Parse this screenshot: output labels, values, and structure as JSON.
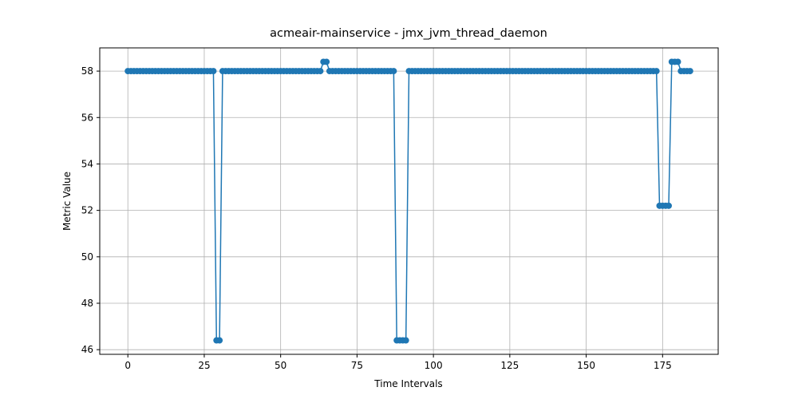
{
  "chart_data": {
    "type": "line",
    "title": "acmeair-mainservice - jmx_jvm_thread_daemon",
    "x_label": "Time Intervals",
    "y_label": "Metric Value",
    "x": [
      0,
      1,
      2,
      3,
      4,
      5,
      6,
      7,
      8,
      9,
      10,
      11,
      12,
      13,
      14,
      15,
      16,
      17,
      18,
      19,
      20,
      21,
      22,
      23,
      24,
      25,
      26,
      27,
      28,
      29,
      30,
      31,
      32,
      33,
      34,
      35,
      36,
      37,
      38,
      39,
      40,
      41,
      42,
      43,
      44,
      45,
      46,
      47,
      48,
      49,
      50,
      51,
      52,
      53,
      54,
      55,
      56,
      57,
      58,
      59,
      60,
      61,
      62,
      63,
      64,
      65,
      66,
      67,
      68,
      69,
      70,
      71,
      72,
      73,
      74,
      75,
      76,
      77,
      78,
      79,
      80,
      81,
      82,
      83,
      84,
      85,
      86,
      87,
      88,
      89,
      90,
      91,
      92,
      93,
      94,
      95,
      96,
      97,
      98,
      99,
      100,
      101,
      102,
      103,
      104,
      105,
      106,
      107,
      108,
      109,
      110,
      111,
      112,
      113,
      114,
      115,
      116,
      117,
      118,
      119,
      120,
      121,
      122,
      123,
      124,
      125,
      126,
      127,
      128,
      129,
      130,
      131,
      132,
      133,
      134,
      135,
      136,
      137,
      138,
      139,
      140,
      141,
      142,
      143,
      144,
      145,
      146,
      147,
      148,
      149,
      150,
      151,
      152,
      153,
      154,
      155,
      156,
      157,
      158,
      159,
      160,
      161,
      162,
      163,
      164,
      165,
      166,
      167,
      168,
      169,
      170,
      171,
      172,
      173,
      174,
      175,
      176,
      177,
      178,
      179,
      180,
      181,
      182,
      183,
      184
    ],
    "series": [
      {
        "color": "#1f77b4",
        "values": [
          58,
          58,
          58,
          58,
          58,
          58,
          58,
          58,
          58,
          58,
          58,
          58,
          58,
          58,
          58,
          58,
          58,
          58,
          58,
          58,
          58,
          58,
          58,
          58,
          58,
          58,
          58,
          58,
          58,
          46.4,
          46.4,
          58,
          58,
          58,
          58,
          58,
          58,
          58,
          58,
          58,
          58,
          58,
          58,
          58,
          58,
          58,
          58,
          58,
          58,
          58,
          58,
          58,
          58,
          58,
          58,
          58,
          58,
          58,
          58,
          58,
          58,
          58,
          58,
          58,
          58.4,
          58.4,
          58,
          58,
          58,
          58,
          58,
          58,
          58,
          58,
          58,
          58,
          58,
          58,
          58,
          58,
          58,
          58,
          58,
          58,
          58,
          58,
          58,
          58,
          46.4,
          46.4,
          46.4,
          46.4,
          58,
          58,
          58,
          58,
          58,
          58,
          58,
          58,
          58,
          58,
          58,
          58,
          58,
          58,
          58,
          58,
          58,
          58,
          58,
          58,
          58,
          58,
          58,
          58,
          58,
          58,
          58,
          58,
          58,
          58,
          58,
          58,
          58,
          58,
          58,
          58,
          58,
          58,
          58,
          58,
          58,
          58,
          58,
          58,
          58,
          58,
          58,
          58,
          58,
          58,
          58,
          58,
          58,
          58,
          58,
          58,
          58,
          58,
          58,
          58,
          58,
          58,
          58,
          58,
          58,
          58,
          58,
          58,
          58,
          58,
          58,
          58,
          58,
          58,
          58,
          58,
          58,
          58,
          58,
          58,
          58,
          58,
          52.2,
          52.2,
          52.2,
          52.2,
          58.4,
          58.4,
          58.4,
          58,
          58,
          58,
          58
        ]
      }
    ],
    "xlim": [
      -9.2,
      193.2
    ],
    "ylim": [
      45.8,
      59.0
    ],
    "xticks": [
      0,
      25,
      50,
      75,
      100,
      125,
      150,
      175
    ],
    "yticks": [
      46,
      48,
      50,
      52,
      54,
      56,
      58
    ],
    "grid": true
  }
}
